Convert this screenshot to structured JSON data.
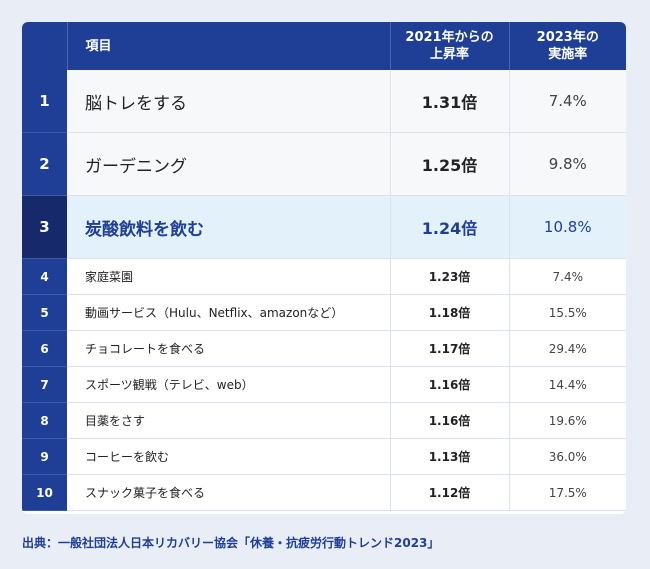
{
  "table": {
    "headers": {
      "item": "項目",
      "rate_line1": "2021年からの",
      "rate_line2": "上昇率",
      "impl_line1": "2023年の",
      "impl_line2": "実施率"
    },
    "rows": [
      {
        "rank": "1",
        "item": "脳トレをする",
        "rate": "1.31倍",
        "impl": "7.4%"
      },
      {
        "rank": "2",
        "item": "ガーデニング",
        "rate": "1.25倍",
        "impl": "9.8%"
      },
      {
        "rank": "3",
        "item": "炭酸飲料を飲む",
        "rate": "1.24倍",
        "impl": "10.8%"
      },
      {
        "rank": "4",
        "item": "家庭菜園",
        "rate": "1.23倍",
        "impl": "7.4%"
      },
      {
        "rank": "5",
        "item": "動画サービス（Hulu、Netflix、amazonなど）",
        "rate": "1.18倍",
        "impl": "15.5%"
      },
      {
        "rank": "6",
        "item": "チョコレートを食べる",
        "rate": "1.17倍",
        "impl": "29.4%"
      },
      {
        "rank": "7",
        "item": "スポーツ観戦（テレビ、web）",
        "rate": "1.16倍",
        "impl": "14.4%"
      },
      {
        "rank": "8",
        "item": "目薬をさす",
        "rate": "1.16倍",
        "impl": "19.6%"
      },
      {
        "rank": "9",
        "item": "コーヒーを飲む",
        "rate": "1.13倍",
        "impl": "36.0%"
      },
      {
        "rank": "10",
        "item": "スナック菓子を食べる",
        "rate": "1.12倍",
        "impl": "17.5%"
      }
    ]
  },
  "source": "出典：一般社団法人日本リカバリー協会「休養・抗疲労行動トレンド2023」",
  "colors": {
    "header_bg": "#1f3f97",
    "highlight_bg": "#e3f1fa",
    "highlight_rank_bg": "#15296b",
    "page_bg": "#e9eef6"
  }
}
